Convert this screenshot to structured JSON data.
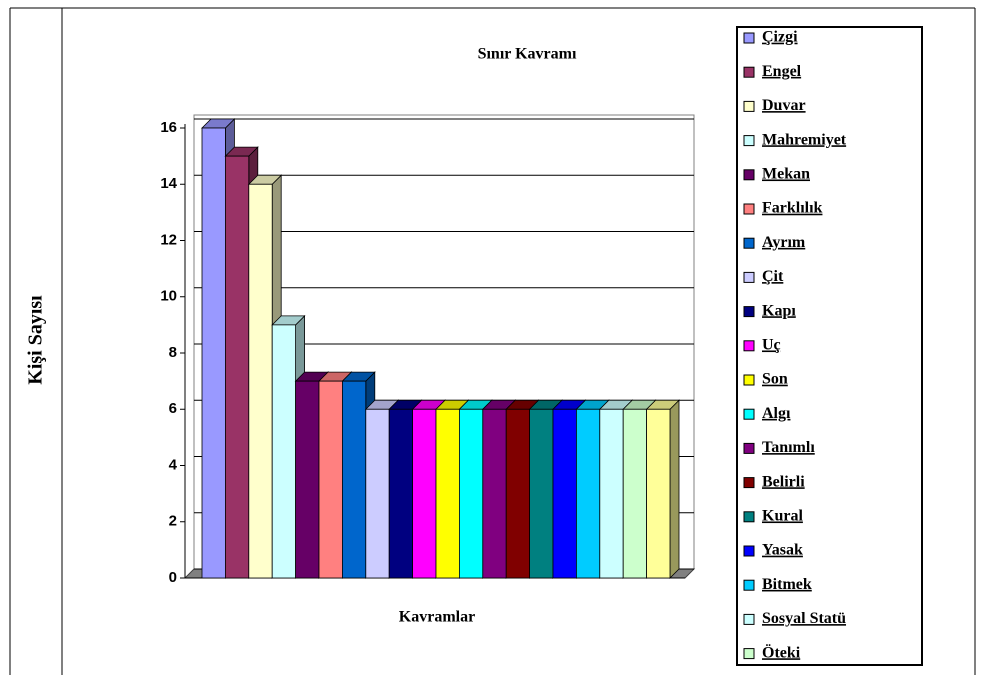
{
  "chart_data": {
    "type": "bar3d",
    "title": "Sınır Kavramı",
    "x_label": "Kavramlar",
    "y_label": "Kişi Sayısı",
    "categories": [
      "Çizgi",
      "Engel",
      "Duvar",
      "Mahremiyet",
      "Mekan",
      "Farklılık",
      "Ayrım",
      "Çit",
      "Kapı",
      "Uç",
      "Son",
      "Algı",
      "Tanımlı",
      "Belirli",
      "Kural",
      "Yasak",
      "Bitmek",
      "Sosyal Statü",
      "Öteki",
      null
    ],
    "values": [
      16,
      15,
      14,
      9,
      7,
      7,
      7,
      6,
      6,
      6,
      6,
      6,
      6,
      6,
      6,
      6,
      6,
      6,
      6,
      6
    ],
    "colors": [
      "#9999ff",
      "#993366",
      "#ffffcc",
      "#ccffff",
      "#660066",
      "#ff8080",
      "#0066cc",
      "#ccccff",
      "#000080",
      "#ff00ff",
      "#ffff00",
      "#00ffff",
      "#800080",
      "#800000",
      "#008080",
      "#0000ff",
      "#00ccff",
      "#ccffff",
      "#ccffcc",
      "#ffff99"
    ],
    "ylim": [
      0,
      16
    ],
    "yticks": [
      0,
      2,
      4,
      6,
      8,
      10,
      12,
      14,
      16
    ],
    "grid": true,
    "legend": "right"
  }
}
